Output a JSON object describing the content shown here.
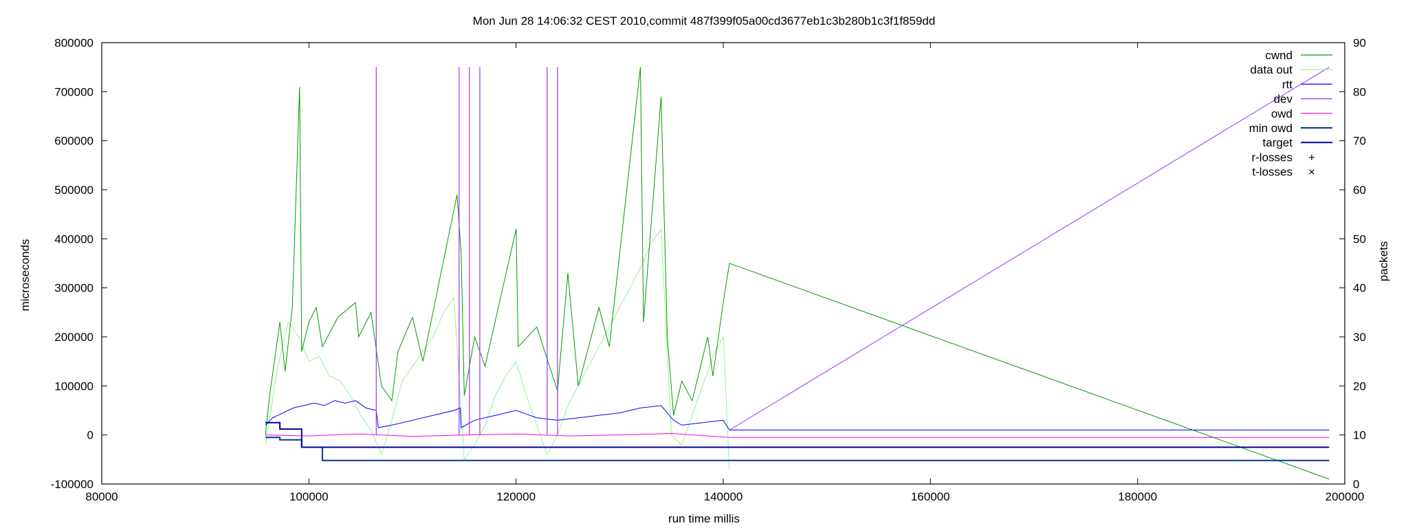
{
  "chart_data": {
    "type": "line",
    "title": "Mon Jun 28 14:06:32 CEST 2010,commit 487f399f05a00cd3677eb1c3b280b1c3f1f859dd",
    "xlabel": "run time millis",
    "ylabel": "microseconds",
    "y2label": "packets",
    "xlim": [
      80000,
      200000
    ],
    "ylim": [
      -100000,
      800000
    ],
    "y2lim": [
      0,
      90
    ],
    "xticks": [
      "80000",
      "100000",
      "120000",
      "140000",
      "160000",
      "180000",
      "200000"
    ],
    "yticks": [
      "-100000",
      "0",
      "100000",
      "200000",
      "300000",
      "400000",
      "500000",
      "600000",
      "700000",
      "800000"
    ],
    "y2ticks": [
      "0",
      "10",
      "20",
      "30",
      "40",
      "50",
      "60",
      "70",
      "80",
      "90"
    ],
    "grid": false,
    "legend_position": "top-right",
    "series": [
      {
        "name": "cwnd",
        "axis": "y2",
        "color": "#009900",
        "x": [
          95800,
          96200,
          97200,
          97700,
          98400,
          99100,
          99300,
          100000,
          100700,
          101300,
          102800,
          104500,
          104800,
          106000,
          107000,
          108000,
          108600,
          110000,
          111000,
          114300,
          114700,
          115000,
          116000,
          117000,
          120000,
          120200,
          122000,
          124000,
          125000,
          126000,
          128000,
          129000,
          132000,
          132300,
          134000,
          134600,
          135200,
          136000,
          137000,
          138500,
          139000,
          140000,
          140600,
          198500
        ],
        "y": [
          10,
          18,
          33,
          23,
          36,
          81,
          27,
          33,
          36,
          28,
          34,
          37,
          30,
          35,
          20,
          17,
          27,
          34,
          25,
          59,
          47,
          18,
          30,
          24,
          52,
          28,
          32,
          19,
          43,
          20,
          36,
          28,
          85,
          33,
          79,
          30,
          14,
          21,
          17,
          30,
          22,
          37,
          45,
          1
        ]
      },
      {
        "name": "data out",
        "axis": "y2",
        "color": "#99ee99",
        "x": [
          95800,
          97000,
          98000,
          99000,
          100000,
          101000,
          102000,
          103000,
          104000,
          105000,
          106000,
          107000,
          108000,
          109000,
          110000,
          111000,
          112000,
          113000,
          114000,
          115000,
          116000,
          117000,
          118000,
          119000,
          120000,
          121000,
          122000,
          123000,
          124000,
          125000,
          126000,
          127000,
          128000,
          129000,
          130000,
          131000,
          132000,
          133000,
          134000,
          135000,
          136000,
          137000,
          138000,
          139000,
          140000,
          140600
        ],
        "y": [
          8,
          24,
          33,
          30,
          25,
          26,
          22,
          21,
          18,
          14,
          11,
          6,
          13,
          21,
          24,
          27,
          30,
          35,
          38,
          5,
          8,
          12,
          18,
          22,
          25,
          18,
          12,
          6,
          10,
          16,
          20,
          24,
          28,
          32,
          36,
          40,
          44,
          49,
          52,
          10,
          8,
          14,
          20,
          26,
          30,
          3
        ]
      },
      {
        "name": "rtt",
        "axis": "y",
        "color": "#0000ff",
        "x": [
          95800,
          96500,
          97500,
          98500,
          99500,
          100500,
          101500,
          102500,
          103500,
          104500,
          105500,
          106500,
          106700,
          108000,
          110000,
          112000,
          114000,
          114600,
          114700,
          116000,
          118000,
          120000,
          122000,
          124000,
          126000,
          128000,
          130000,
          132000,
          134000,
          135200,
          136000,
          138000,
          140000,
          140600,
          198500
        ],
        "y": [
          20000,
          35000,
          45000,
          55000,
          60000,
          65000,
          60000,
          70000,
          65000,
          70000,
          55000,
          50000,
          15000,
          20000,
          30000,
          40000,
          50000,
          55000,
          15000,
          30000,
          40000,
          50000,
          35000,
          30000,
          35000,
          40000,
          45000,
          55000,
          60000,
          30000,
          20000,
          25000,
          30000,
          10000,
          10000
        ]
      },
      {
        "name": "dev",
        "axis": "y",
        "color": "#9933ff",
        "x": [
          140600,
          198500
        ],
        "y": [
          10000,
          750000
        ],
        "spikes_x": [
          106500,
          114500,
          115500,
          116500,
          123000,
          124000
        ],
        "spike_top": 750000
      },
      {
        "name": "owd",
        "axis": "y",
        "color": "#ff00cc",
        "x": [
          95800,
          100000,
          105000,
          110000,
          115000,
          120000,
          125000,
          130000,
          135000,
          140600,
          198500
        ],
        "y": [
          0,
          -2000,
          2000,
          -3000,
          0,
          2000,
          -2000,
          0,
          3000,
          -5000,
          -5000
        ]
      },
      {
        "name": "min owd",
        "axis": "y",
        "color": "#003399",
        "x": [
          95800,
          97200,
          97200,
          99300,
          99300,
          101300,
          101300,
          198500
        ],
        "y": [
          -5000,
          -5000,
          -10000,
          -10000,
          -25000,
          -25000,
          -52000,
          -52000
        ]
      },
      {
        "name": "target",
        "axis": "y",
        "color": "#000099",
        "x": [
          95800,
          97200,
          97200,
          99300,
          99300,
          198500
        ],
        "y": [
          25000,
          25000,
          12000,
          12000,
          -25000,
          -25000
        ]
      },
      {
        "name": "r-losses",
        "axis": "y",
        "color": "#000000",
        "marker": "+",
        "x": [],
        "y": []
      },
      {
        "name": "t-losses",
        "axis": "y",
        "color": "#ff0000",
        "marker": "×",
        "x": [],
        "y": []
      }
    ]
  }
}
